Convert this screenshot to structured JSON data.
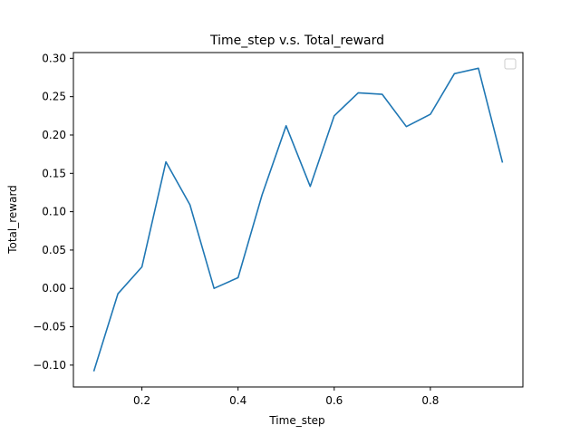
{
  "chart_data": {
    "type": "line",
    "title": "Time_step v.s. Total_reward",
    "xlabel": "Time_step",
    "ylabel": "Total_reward",
    "xlim": [
      0.0575,
      0.9925
    ],
    "ylim": [
      -0.1285,
      0.3075
    ],
    "xticks": [
      {
        "value": 0.2,
        "label": "0.2"
      },
      {
        "value": 0.4,
        "label": "0.4"
      },
      {
        "value": 0.6,
        "label": "0.6"
      },
      {
        "value": 0.8,
        "label": "0.8"
      }
    ],
    "yticks": [
      {
        "value": -0.1,
        "label": "−0.10"
      },
      {
        "value": -0.05,
        "label": "−0.05"
      },
      {
        "value": 0.0,
        "label": "0.00"
      },
      {
        "value": 0.05,
        "label": "0.05"
      },
      {
        "value": 0.1,
        "label": "0.10"
      },
      {
        "value": 0.15,
        "label": "0.15"
      },
      {
        "value": 0.2,
        "label": "0.20"
      },
      {
        "value": 0.25,
        "label": "0.25"
      },
      {
        "value": 0.3,
        "label": "0.30"
      }
    ],
    "grid": false,
    "legend": {
      "placement": "top-right",
      "entries": []
    },
    "series": [
      {
        "color": "#1f77b4",
        "x": [
          0.1,
          0.15,
          0.2,
          0.25,
          0.3,
          0.35,
          0.4,
          0.45,
          0.5,
          0.55,
          0.6,
          0.65,
          0.7,
          0.75,
          0.8,
          0.85,
          0.9,
          0.95
        ],
        "y": [
          -0.108,
          -0.007,
          0.028,
          0.165,
          0.109,
          0.0,
          0.014,
          0.122,
          0.212,
          0.133,
          0.225,
          0.255,
          0.253,
          0.211,
          0.227,
          0.28,
          0.287,
          0.164
        ]
      }
    ]
  }
}
